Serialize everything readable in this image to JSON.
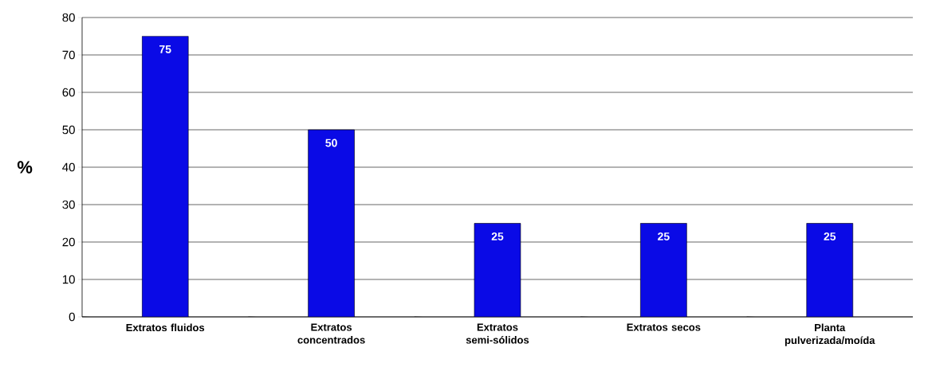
{
  "chart_data": {
    "type": "bar",
    "ylabel": "%",
    "categories": [
      "Extratos fluidos",
      "Extratos concentrados",
      "Extratos semi-sólidos",
      "Extratos secos",
      "Planta pulverizada/moída"
    ],
    "values": [
      75,
      50,
      25,
      25,
      25
    ],
    "color": "#0a0ae6",
    "ylim": [
      0,
      80
    ],
    "yticks": [
      0,
      10,
      20,
      30,
      40,
      50,
      60,
      70,
      80
    ],
    "grid": "y",
    "data_labels": true
  }
}
